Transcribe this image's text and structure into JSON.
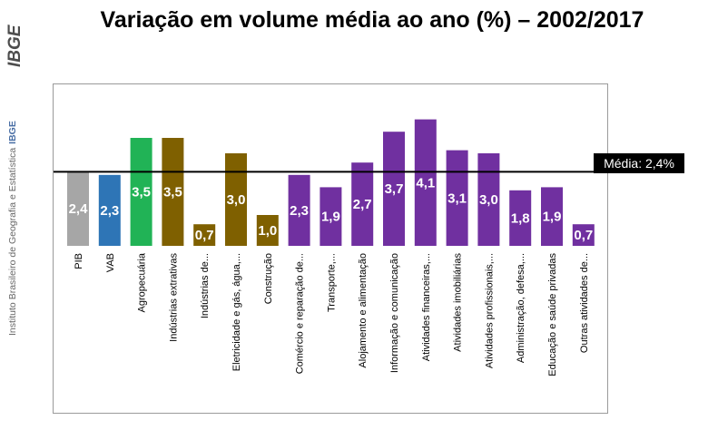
{
  "title": "Variação em volume média ao ano (%) – 2002/2017",
  "logo_text": "IBGE",
  "institute_text": "Instituto Brasileiro de Geografia e Estatística",
  "institute_abbr": "IBGE",
  "average_label": "Média: 2,4%",
  "chart_data": {
    "type": "bar",
    "title": "Variação em volume média ao ano (%) – 2002/2017",
    "xlabel": "",
    "ylabel": "",
    "ylim": [
      0,
      4.5
    ],
    "reference_line": 2.4,
    "categories": [
      "PIB",
      "VAB",
      "Agropecuária",
      "Indústrias extrativas",
      "Indústrias de...",
      "Eletricidade e gás, água,...",
      "Construção",
      "Comércio e reparação de...",
      "Transporte,...",
      "Alojamento e alimentação",
      "Informação e comunicação",
      "Atividades financeiras,...",
      "Atividades imobiliárias",
      "Atividades profissionais,...",
      "Administração, defesa,...",
      "Educação e saúde privadas",
      "Outras atividades de..."
    ],
    "values": [
      2.4,
      2.3,
      3.5,
      3.5,
      0.7,
      3.0,
      1.0,
      2.3,
      1.9,
      2.7,
      3.7,
      4.1,
      3.1,
      3.0,
      1.8,
      1.9,
      0.7
    ],
    "value_labels": [
      "2,4",
      "2,3",
      "3,5",
      "3,5",
      "0,7",
      "3,0",
      "1,0",
      "2,3",
      "1,9",
      "2,7",
      "3,7",
      "4,1",
      "3,1",
      "3,0",
      "1,8",
      "1,9",
      "0,7"
    ],
    "colors": [
      "#a6a6a6",
      "#2e75b6",
      "#21b356",
      "#7f6000",
      "#7f6000",
      "#7f6000",
      "#7f6000",
      "#7030a0",
      "#7030a0",
      "#7030a0",
      "#7030a0",
      "#7030a0",
      "#7030a0",
      "#7030a0",
      "#7030a0",
      "#7030a0",
      "#7030a0"
    ],
    "grid": false,
    "legend": "none"
  }
}
